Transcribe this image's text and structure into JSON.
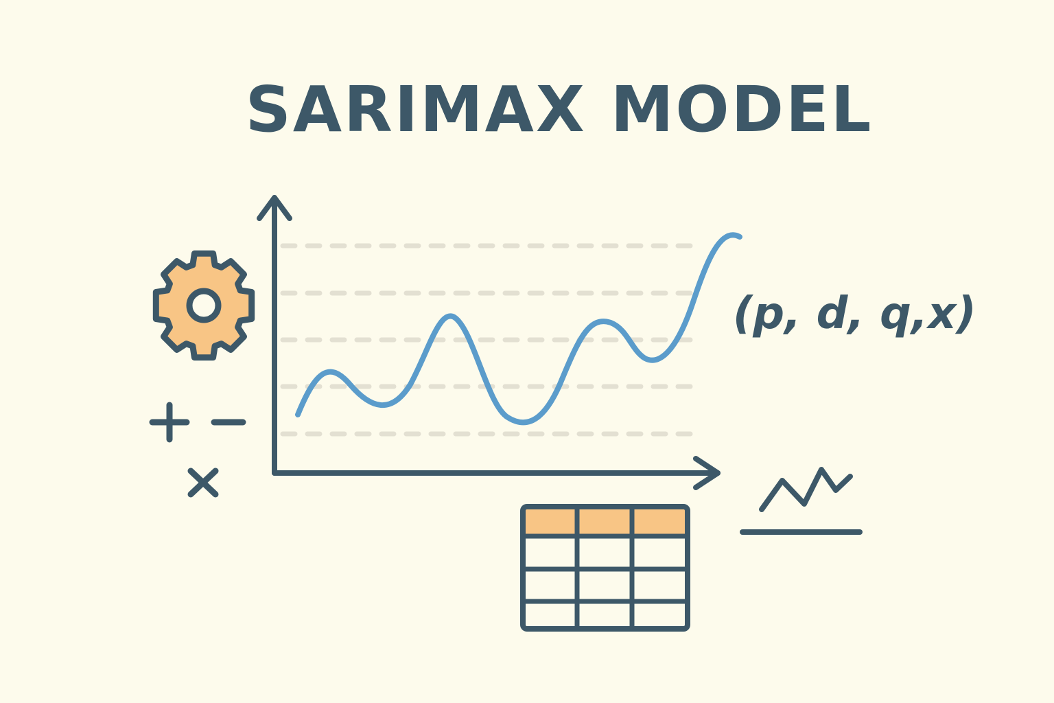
{
  "title": "SARIMAX MODEL",
  "params_label": "(p, d, q,x)",
  "colors": {
    "background": "#fdfbec",
    "ink": "#3d5868",
    "series": "#5b9ccb",
    "accent": "#f8c585",
    "gridline": "#e3e0d2"
  },
  "icons": {
    "gear": "gear-icon",
    "plus": "plus-icon",
    "minus": "minus-icon",
    "times": "times-icon",
    "table": "table-icon",
    "trend": "trend-line-icon"
  }
}
